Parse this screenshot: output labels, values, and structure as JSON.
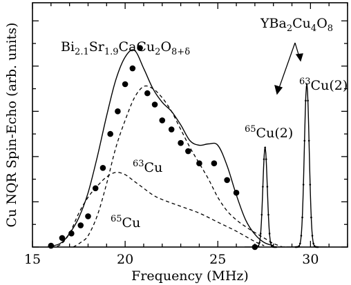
{
  "chart_data": {
    "type": "line",
    "title": "",
    "xlabel": "Frequency (MHz)",
    "ylabel": "Cu NQR Spin-Echo (arb. units)",
    "xlim": [
      15,
      32
    ],
    "ylim": [
      0,
      5.4
    ],
    "xticks": [
      "15",
      "20",
      "25",
      "30"
    ],
    "yticks_labeled": false,
    "grid": false,
    "series": [
      {
        "style": "filled-circles",
        "x": [
          16.0,
          16.6,
          17.1,
          17.6,
          18.0,
          18.4,
          18.8,
          19.2,
          19.6,
          20.0,
          20.4,
          20.8,
          21.2,
          21.6,
          22.0,
          22.5,
          23.0,
          23.4,
          24.0,
          24.8,
          25.5,
          26.0,
          27.0
        ],
        "y": [
          0.03,
          0.2,
          0.3,
          0.48,
          0.68,
          1.3,
          1.75,
          2.5,
          3.0,
          3.6,
          3.95,
          4.4,
          3.4,
          3.15,
          2.8,
          2.6,
          2.3,
          2.12,
          1.85,
          1.85,
          1.48,
          1.2,
          0.0
        ]
      },
      {
        "style": "solid",
        "x": [
          15.8,
          16.5,
          17.0,
          17.5,
          18.0,
          18.5,
          19.0,
          19.5,
          20.0,
          20.5,
          21.0,
          21.5,
          22.0,
          22.5,
          23.0,
          23.5,
          24.0,
          24.5,
          25.0,
          25.5,
          26.0,
          26.5,
          27.0,
          27.5,
          28.0
        ],
        "y": [
          0.0,
          0.08,
          0.3,
          0.65,
          1.2,
          2.0,
          2.9,
          3.7,
          4.2,
          4.35,
          3.95,
          3.5,
          3.2,
          3.0,
          2.7,
          2.35,
          2.25,
          2.28,
          2.25,
          1.8,
          1.15,
          0.6,
          0.28,
          0.1,
          0.03
        ]
      },
      {
        "style": "dashed",
        "label": "63Cu",
        "x": [
          17.2,
          17.6,
          18.0,
          18.5,
          19.0,
          19.5,
          20.0,
          20.5,
          21.0,
          21.5,
          22.0,
          22.5,
          23.0,
          23.5,
          24.0,
          24.5,
          25.0,
          25.5,
          26.0,
          26.5,
          27.0,
          27.5,
          28.0,
          28.5
        ],
        "y": [
          0.0,
          0.1,
          0.25,
          0.7,
          1.4,
          2.2,
          2.8,
          3.3,
          3.55,
          3.5,
          3.3,
          3.0,
          2.6,
          2.2,
          1.85,
          1.5,
          1.1,
          0.8,
          0.6,
          0.45,
          0.32,
          0.2,
          0.08,
          0.0
        ]
      },
      {
        "style": "dashed",
        "label": "65Cu",
        "x": [
          16.0,
          16.5,
          17.0,
          17.5,
          18.0,
          18.5,
          19.0,
          19.5,
          20.0,
          20.5,
          21.0,
          21.5,
          22.0,
          23.0,
          24.0,
          25.0,
          26.0,
          27.0,
          27.5
        ],
        "y": [
          0.0,
          0.05,
          0.3,
          0.75,
          1.1,
          1.35,
          1.55,
          1.65,
          1.6,
          1.45,
          1.3,
          1.15,
          1.05,
          0.9,
          0.75,
          0.55,
          0.35,
          0.12,
          0.03
        ]
      },
      {
        "style": "solid-dots",
        "label": "YBa2Cu4O8",
        "peaks": [
          {
            "label": "65Cu(2)",
            "center": 27.55,
            "height": 2.2,
            "width": 0.12
          },
          {
            "label": "63Cu(2)",
            "center": 29.8,
            "height": 3.6,
            "width": 0.13
          }
        ]
      },
      {
        "style": "dotted-baseline",
        "x": [
          15,
          32
        ],
        "y": [
          0,
          0
        ]
      }
    ],
    "annotations": [
      {
        "base": "Bi",
        "sub": "2.1",
        "t2": "Sr",
        "sub2": "1.9",
        "t3": "CaCu",
        "sub3": "2",
        "t4": "O",
        "sub4": "8+δ"
      },
      {
        "base": "YBa",
        "sub": "2",
        "t2": "Cu",
        "sub2": "4",
        "t3": "O",
        "sub3": "8"
      },
      {
        "sup": "63",
        "text": "Cu"
      },
      {
        "sup": "65",
        "text": "Cu"
      },
      {
        "sup": "65",
        "text": "Cu(2)"
      },
      {
        "sup": "63",
        "text": "Cu(2)"
      }
    ]
  }
}
